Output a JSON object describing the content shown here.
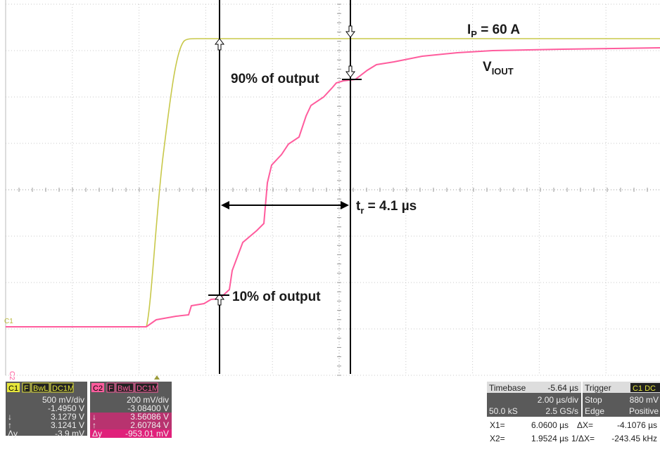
{
  "screen": {
    "channel_labels": {
      "c1": "C1",
      "c2": "C2"
    },
    "annotations": {
      "ip": {
        "main": "I",
        "sub": "P",
        "rest": " = 60 A"
      },
      "viout": {
        "main": "V",
        "sub": "IOUT"
      },
      "p90": "90% of output",
      "tr": {
        "main": "t",
        "sub": "r",
        "rest": " = 4.1 µs"
      },
      "p10": "10% of output"
    },
    "c1_panel": {
      "name": "C1",
      "tags": [
        "F",
        "BwL",
        "DC1M"
      ],
      "rows": [
        [
          "",
          "500 mV/div"
        ],
        [
          "",
          "-1.4950 V"
        ],
        [
          "↓",
          "3.1279 V"
        ],
        [
          "↑",
          "3.1241 V"
        ],
        [
          "Δy",
          "-3.9 mV"
        ]
      ]
    },
    "c2_panel": {
      "name": "C2",
      "tags": [
        "F",
        "BwL",
        "DC1M"
      ],
      "rows": [
        [
          "",
          "200 mV/div"
        ],
        [
          "",
          "-3.08400 V"
        ],
        [
          "↓",
          "3.56086 V"
        ],
        [
          "↑",
          "2.60784 V"
        ],
        [
          "Δy",
          "-953.01 mV"
        ]
      ]
    },
    "timebase": {
      "title": "Timebase",
      "offset": "-5.64 µs",
      "div": "2.00 µs/div",
      "samples": "50.0 kS",
      "rate": "2.5 GS/s"
    },
    "trigger": {
      "title": "Trigger",
      "src": "C1 DC",
      "mode": "Stop",
      "level": "880 mV",
      "type": "Edge",
      "slope": "Positive"
    },
    "cursors": {
      "x1_label": "X1=",
      "x1": "6.0600 µs",
      "dx_label": "ΔX=",
      "dx": "-4.1076 µs",
      "x2_label": "X2=",
      "x2": "1.9524 µs",
      "inv_label": "1/ΔX=",
      "inv": "-243.45 kHz"
    }
  }
}
